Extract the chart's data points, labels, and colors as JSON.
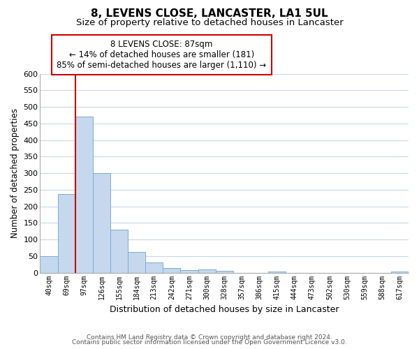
{
  "title": "8, LEVENS CLOSE, LANCASTER, LA1 5UL",
  "subtitle": "Size of property relative to detached houses in Lancaster",
  "xlabel": "Distribution of detached houses by size in Lancaster",
  "ylabel": "Number of detached properties",
  "bar_labels": [
    "40sqm",
    "69sqm",
    "97sqm",
    "126sqm",
    "155sqm",
    "184sqm",
    "213sqm",
    "242sqm",
    "271sqm",
    "300sqm",
    "328sqm",
    "357sqm",
    "386sqm",
    "415sqm",
    "444sqm",
    "473sqm",
    "502sqm",
    "530sqm",
    "559sqm",
    "588sqm",
    "617sqm"
  ],
  "bar_values": [
    50,
    238,
    470,
    300,
    130,
    62,
    30,
    15,
    8,
    10,
    6,
    0,
    0,
    4,
    0,
    0,
    0,
    0,
    0,
    0,
    4
  ],
  "bar_color": "#c5d8ed",
  "bar_edge_color": "#7aadd4",
  "ylim": [
    0,
    600
  ],
  "yticks": [
    0,
    50,
    100,
    150,
    200,
    250,
    300,
    350,
    400,
    450,
    500,
    550,
    600
  ],
  "vline_color": "#cc0000",
  "annotation_title": "8 LEVENS CLOSE: 87sqm",
  "annotation_line1": "← 14% of detached houses are smaller (181)",
  "annotation_line2": "85% of semi-detached houses are larger (1,110) →",
  "annotation_box_color": "#ffffff",
  "annotation_box_edge": "#cc0000",
  "footer1": "Contains HM Land Registry data © Crown copyright and database right 2024.",
  "footer2": "Contains public sector information licensed under the Open Government Licence v3.0.",
  "bg_color": "#ffffff",
  "grid_color": "#c8d8e8",
  "title_fontsize": 11,
  "subtitle_fontsize": 9.5
}
